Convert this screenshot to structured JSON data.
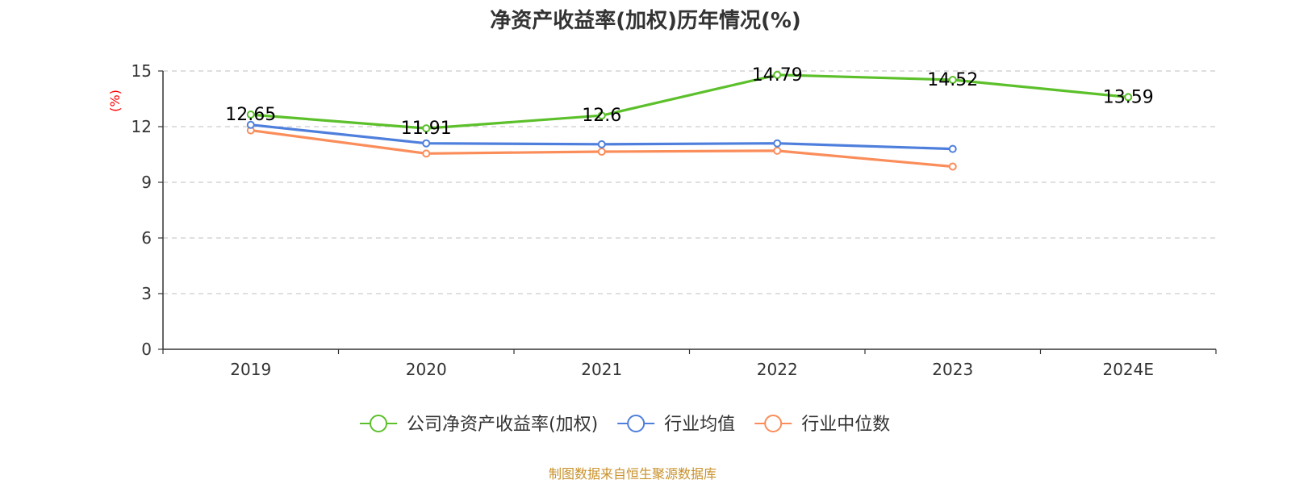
{
  "chart_data": {
    "type": "line",
    "title": "净资产收益率(加权)历年情况(%)",
    "ylabel": "(%)",
    "xlabel": "",
    "categories": [
      "2019",
      "2020",
      "2021",
      "2022",
      "2023",
      "2024E"
    ],
    "yticks": [
      0,
      3,
      6,
      9,
      12,
      15
    ],
    "ylim": [
      0,
      15
    ],
    "grid": "horizontal-dashed",
    "legend_position": "bottom",
    "series": [
      {
        "name": "公司净资产收益率(加权)",
        "color": "#5cc02b",
        "values": [
          12.65,
          11.91,
          12.6,
          14.79,
          14.52,
          13.59
        ],
        "show_labels": true
      },
      {
        "name": "行业均值",
        "color": "#4f7fdc",
        "values": [
          12.1,
          11.1,
          11.05,
          11.1,
          10.8,
          null
        ],
        "show_labels": false
      },
      {
        "name": "行业中位数",
        "color": "#fa8d5a",
        "values": [
          11.8,
          10.55,
          10.65,
          10.7,
          9.85,
          null
        ],
        "show_labels": false
      }
    ]
  },
  "footer": "制图数据来自恒生聚源数据库"
}
